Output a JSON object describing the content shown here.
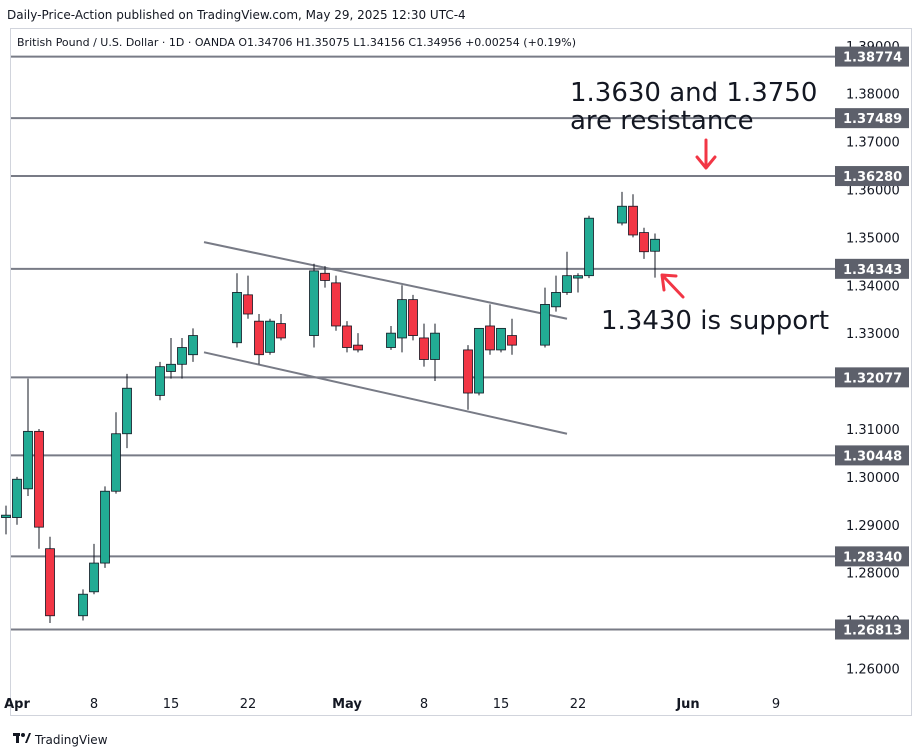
{
  "header": {
    "published": "Daily-Price-Action published on TradingView.com, May 29, 2025 12:30 UTC-4"
  },
  "symbol": {
    "name": "British Pound / U.S. Dollar · 1D · OANDA",
    "open": "O1.34706",
    "high": "H1.35075",
    "low": "L1.34156",
    "close": "C1.34956",
    "change": "+0.00254 (+0.19%)"
  },
  "footer": {
    "brand": "TradingView",
    "logo_icon": "tradingview-logo-icon"
  },
  "colors": {
    "up": "#22ab94",
    "down": "#f23645",
    "level_line": "#787b86",
    "badge_bg": "#5d606b",
    "annotation_arrow": "#f23645",
    "channel": "#787b86"
  },
  "chart_data": {
    "type": "candlestick",
    "title": "",
    "xlabel": "",
    "ylabel": "",
    "ylim": [
      1.2555,
      1.3935
    ],
    "y_ticks": [
      "1.26000",
      "1.27000",
      "1.28000",
      "1.29000",
      "1.30000",
      "1.31000",
      "1.32000",
      "1.33000",
      "1.34000",
      "1.35000",
      "1.36000",
      "1.37000",
      "1.38000",
      "1.39000"
    ],
    "x_tick_labels": [
      {
        "label": "Apr",
        "date": "2025-04-01"
      },
      {
        "label": "8",
        "date": "2025-04-08"
      },
      {
        "label": "15",
        "date": "2025-04-15"
      },
      {
        "label": "22",
        "date": "2025-04-22"
      },
      {
        "label": "May",
        "date": "2025-05-01"
      },
      {
        "label": "8",
        "date": "2025-05-08"
      },
      {
        "label": "15",
        "date": "2025-05-15"
      },
      {
        "label": "22",
        "date": "2025-05-22"
      },
      {
        "label": "Jun",
        "date": "2025-06-01"
      },
      {
        "label": "9",
        "date": "2025-06-09"
      }
    ],
    "candles": [
      {
        "date": "2025-03-31",
        "o": 1.2915,
        "h": 1.294,
        "l": 1.288,
        "c": 1.292
      },
      {
        "date": "2025-04-01",
        "o": 1.2915,
        "h": 1.3,
        "l": 1.29,
        "c": 1.2995
      },
      {
        "date": "2025-04-02",
        "o": 1.2975,
        "h": 1.3205,
        "l": 1.296,
        "c": 1.3095
      },
      {
        "date": "2025-04-03",
        "o": 1.3095,
        "h": 1.31,
        "l": 1.285,
        "c": 1.2895
      },
      {
        "date": "2025-04-04",
        "o": 1.285,
        "h": 1.2875,
        "l": 1.2695,
        "c": 1.271
      },
      {
        "date": "2025-04-07",
        "o": 1.271,
        "h": 1.2765,
        "l": 1.27,
        "c": 1.2755
      },
      {
        "date": "2025-04-08",
        "o": 1.276,
        "h": 1.286,
        "l": 1.2755,
        "c": 1.282
      },
      {
        "date": "2025-04-09",
        "o": 1.282,
        "h": 1.298,
        "l": 1.281,
        "c": 1.297
      },
      {
        "date": "2025-04-10",
        "o": 1.297,
        "h": 1.3135,
        "l": 1.2965,
        "c": 1.309
      },
      {
        "date": "2025-04-11",
        "o": 1.309,
        "h": 1.3215,
        "l": 1.306,
        "c": 1.3185
      },
      {
        "date": "2025-04-14",
        "o": 1.317,
        "h": 1.324,
        "l": 1.316,
        "c": 1.323
      },
      {
        "date": "2025-04-15",
        "o": 1.322,
        "h": 1.329,
        "l": 1.3205,
        "c": 1.3235
      },
      {
        "date": "2025-04-16",
        "o": 1.3235,
        "h": 1.329,
        "l": 1.3205,
        "c": 1.327
      },
      {
        "date": "2025-04-17",
        "o": 1.3255,
        "h": 1.331,
        "l": 1.324,
        "c": 1.3295
      },
      {
        "date": "2025-04-21",
        "o": 1.328,
        "h": 1.3425,
        "l": 1.327,
        "c": 1.3385
      },
      {
        "date": "2025-04-22",
        "o": 1.338,
        "h": 1.342,
        "l": 1.333,
        "c": 1.334
      },
      {
        "date": "2025-04-23",
        "o": 1.3325,
        "h": 1.334,
        "l": 1.3235,
        "c": 1.3255
      },
      {
        "date": "2025-04-24",
        "o": 1.326,
        "h": 1.333,
        "l": 1.3255,
        "c": 1.3325
      },
      {
        "date": "2025-04-25",
        "o": 1.332,
        "h": 1.334,
        "l": 1.3285,
        "c": 1.329
      },
      {
        "date": "2025-04-28",
        "o": 1.3295,
        "h": 1.3445,
        "l": 1.327,
        "c": 1.343
      },
      {
        "date": "2025-04-29",
        "o": 1.3425,
        "h": 1.344,
        "l": 1.3395,
        "c": 1.341
      },
      {
        "date": "2025-04-30",
        "o": 1.3405,
        "h": 1.342,
        "l": 1.3305,
        "c": 1.3315
      },
      {
        "date": "2025-05-01",
        "o": 1.3315,
        "h": 1.3325,
        "l": 1.326,
        "c": 1.327
      },
      {
        "date": "2025-05-02",
        "o": 1.3275,
        "h": 1.33,
        "l": 1.326,
        "c": 1.3265
      },
      {
        "date": "2025-05-05",
        "o": 1.327,
        "h": 1.3315,
        "l": 1.3265,
        "c": 1.33
      },
      {
        "date": "2025-05-06",
        "o": 1.329,
        "h": 1.34,
        "l": 1.326,
        "c": 1.337
      },
      {
        "date": "2025-05-07",
        "o": 1.337,
        "h": 1.338,
        "l": 1.3285,
        "c": 1.3295
      },
      {
        "date": "2025-05-08",
        "o": 1.329,
        "h": 1.332,
        "l": 1.323,
        "c": 1.3245
      },
      {
        "date": "2025-05-09",
        "o": 1.3245,
        "h": 1.332,
        "l": 1.32,
        "c": 1.33
      },
      {
        "date": "2025-05-12",
        "o": 1.3265,
        "h": 1.3275,
        "l": 1.314,
        "c": 1.3175
      },
      {
        "date": "2025-05-13",
        "o": 1.3175,
        "h": 1.331,
        "l": 1.317,
        "c": 1.331
      },
      {
        "date": "2025-05-14",
        "o": 1.3315,
        "h": 1.336,
        "l": 1.3255,
        "c": 1.3265
      },
      {
        "date": "2025-05-15",
        "o": 1.3265,
        "h": 1.331,
        "l": 1.326,
        "c": 1.331
      },
      {
        "date": "2025-05-16",
        "o": 1.3295,
        "h": 1.333,
        "l": 1.3255,
        "c": 1.3275
      },
      {
        "date": "2025-05-19",
        "o": 1.3275,
        "h": 1.3395,
        "l": 1.327,
        "c": 1.336
      },
      {
        "date": "2025-05-20",
        "o": 1.3355,
        "h": 1.342,
        "l": 1.3345,
        "c": 1.3385
      },
      {
        "date": "2025-05-21",
        "o": 1.3385,
        "h": 1.347,
        "l": 1.338,
        "c": 1.342
      },
      {
        "date": "2025-05-22",
        "o": 1.3415,
        "h": 1.3425,
        "l": 1.3385,
        "c": 1.342
      },
      {
        "date": "2025-05-23",
        "o": 1.342,
        "h": 1.3545,
        "l": 1.3415,
        "c": 1.354
      },
      {
        "date": "2025-05-26",
        "o": 1.353,
        "h": 1.3595,
        "l": 1.3525,
        "c": 1.3565
      },
      {
        "date": "2025-05-27",
        "o": 1.3565,
        "h": 1.359,
        "l": 1.35,
        "c": 1.3505
      },
      {
        "date": "2025-05-28",
        "o": 1.351,
        "h": 1.352,
        "l": 1.3455,
        "c": 1.347
      },
      {
        "date": "2025-05-29",
        "o": 1.3471,
        "h": 1.3508,
        "l": 1.3416,
        "c": 1.3496
      }
    ],
    "levels": [
      {
        "value": 1.38774,
        "label": "1.38774"
      },
      {
        "value": 1.37489,
        "label": "1.37489"
      },
      {
        "value": 1.3628,
        "label": "1.36280"
      },
      {
        "value": 1.34343,
        "label": "1.34343"
      },
      {
        "value": 1.32077,
        "label": "1.32077"
      },
      {
        "value": 1.30448,
        "label": "1.30448"
      },
      {
        "value": 1.2834,
        "label": "1.28340"
      },
      {
        "value": 1.26813,
        "label": "1.26813"
      }
    ],
    "channel": [
      {
        "from": {
          "date": "2025-04-18",
          "price": 1.349
        },
        "to": {
          "date": "2025-05-21",
          "price": 1.333
        }
      },
      {
        "from": {
          "date": "2025-04-18",
          "price": 1.326
        },
        "to": {
          "date": "2025-05-21",
          "price": 1.309
        }
      }
    ],
    "annotations": [
      {
        "name": "resistance-note",
        "lines": [
          "1.3630 and 1.3750",
          "are resistance"
        ]
      },
      {
        "name": "support-note",
        "lines": [
          "1.3430 is support"
        ]
      }
    ]
  }
}
